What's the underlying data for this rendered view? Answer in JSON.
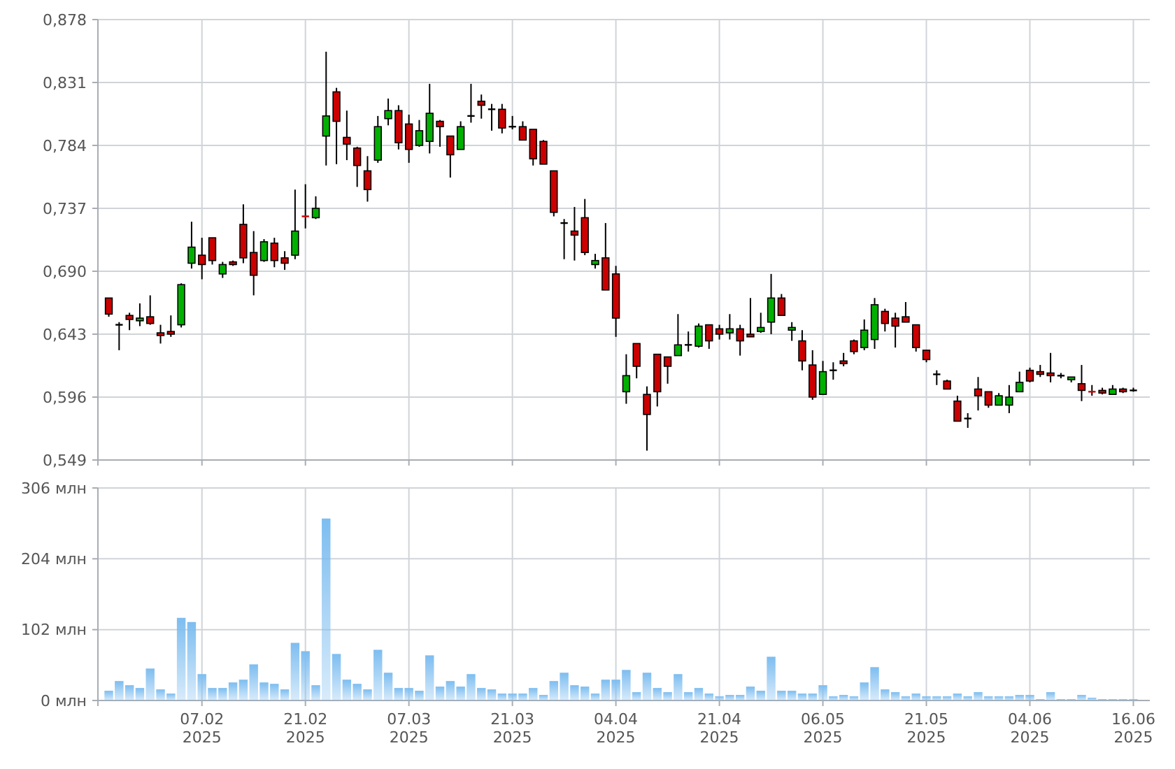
{
  "chart_data": [
    {
      "type": "candlestick",
      "tick_labels": "y",
      "grid": true,
      "categories": [
        null,
        null,
        null,
        null,
        null,
        null,
        null,
        null,
        null,
        null,
        null,
        null,
        null,
        null,
        null,
        null,
        null,
        null,
        null,
        null,
        null,
        null,
        null,
        null,
        null,
        null,
        null,
        null,
        null,
        null,
        null,
        null,
        null,
        null,
        null,
        null,
        null,
        null,
        null,
        null,
        null,
        null,
        null,
        null,
        null,
        null,
        null,
        null,
        null,
        null,
        null,
        null,
        null,
        null,
        null,
        null,
        null,
        null,
        null,
        null,
        null,
        null,
        null,
        null,
        null,
        null,
        null,
        null,
        null,
        null,
        null,
        null,
        null,
        null,
        null,
        null,
        null,
        null,
        null,
        null,
        null,
        null,
        null,
        null,
        null,
        null,
        null,
        null,
        null,
        null,
        null,
        null,
        null,
        null,
        null,
        null,
        null,
        null,
        null,
        null
      ],
      "ylim": [
        0.549,
        0.878
      ],
      "yticks": [
        {
          "value": 0.549,
          "label": "0,549"
        },
        {
          "value": 0.596,
          "label": "0,596"
        },
        {
          "value": 0.643,
          "label": "0,643"
        },
        {
          "value": 0.69,
          "label": "0,690"
        },
        {
          "value": 0.737,
          "label": "0,737"
        },
        {
          "value": 0.784,
          "label": "0,784"
        },
        {
          "value": 0.831,
          "label": "0,831"
        },
        {
          "value": 0.878,
          "label": "0,878"
        }
      ],
      "ohlc": [
        [
          0.67,
          0.67,
          0.656,
          0.658
        ],
        [
          0.65,
          0.652,
          0.631,
          0.65
        ],
        [
          0.657,
          0.659,
          0.646,
          0.654
        ],
        [
          0.653,
          0.666,
          0.649,
          0.655
        ],
        [
          0.656,
          0.672,
          0.65,
          0.651
        ],
        [
          0.644,
          0.65,
          0.636,
          0.642
        ],
        [
          0.645,
          0.657,
          0.641,
          0.643
        ],
        [
          0.65,
          0.681,
          0.648,
          0.68
        ],
        [
          0.696,
          0.727,
          0.692,
          0.708
        ],
        [
          0.702,
          0.715,
          0.684,
          0.695
        ],
        [
          0.715,
          0.715,
          0.695,
          0.698
        ],
        [
          0.688,
          0.697,
          0.685,
          0.695
        ],
        [
          0.697,
          0.698,
          0.694,
          0.695
        ],
        [
          0.725,
          0.74,
          0.696,
          0.7
        ],
        [
          0.704,
          0.72,
          0.672,
          0.687
        ],
        [
          0.698,
          0.714,
          0.697,
          0.712
        ],
        [
          0.711,
          0.715,
          0.693,
          0.698
        ],
        [
          0.7,
          0.705,
          0.691,
          0.696
        ],
        [
          0.702,
          0.751,
          0.699,
          0.72
        ],
        [
          0.731,
          0.755,
          0.722,
          0.73
        ],
        [
          0.73,
          0.746,
          0.729,
          0.737
        ],
        [
          0.791,
          0.854,
          0.769,
          0.806
        ],
        [
          0.824,
          0.827,
          0.77,
          0.802
        ],
        [
          0.79,
          0.81,
          0.773,
          0.785
        ],
        [
          0.782,
          0.783,
          0.753,
          0.769
        ],
        [
          0.765,
          0.776,
          0.742,
          0.751
        ],
        [
          0.773,
          0.806,
          0.771,
          0.798
        ],
        [
          0.804,
          0.819,
          0.799,
          0.81
        ],
        [
          0.81,
          0.814,
          0.781,
          0.786
        ],
        [
          0.8,
          0.807,
          0.771,
          0.781
        ],
        [
          0.784,
          0.803,
          0.783,
          0.795
        ],
        [
          0.787,
          0.83,
          0.778,
          0.808
        ],
        [
          0.802,
          0.803,
          0.783,
          0.798
        ],
        [
          0.791,
          0.791,
          0.76,
          0.777
        ],
        [
          0.781,
          0.802,
          0.781,
          0.798
        ],
        [
          0.806,
          0.83,
          0.801,
          0.806
        ],
        [
          0.817,
          0.822,
          0.804,
          0.814
        ],
        [
          0.811,
          0.815,
          0.795,
          0.811
        ],
        [
          0.811,
          0.815,
          0.793,
          0.797
        ],
        [
          0.798,
          0.806,
          0.796,
          0.798
        ],
        [
          0.798,
          0.802,
          0.788,
          0.788
        ],
        [
          0.796,
          0.796,
          0.769,
          0.774
        ],
        [
          0.787,
          0.788,
          0.77,
          0.77
        ],
        [
          0.765,
          0.765,
          0.731,
          0.734
        ],
        [
          0.726,
          0.729,
          0.699,
          0.726
        ],
        [
          0.72,
          0.738,
          0.698,
          0.717
        ],
        [
          0.73,
          0.744,
          0.702,
          0.704
        ],
        [
          0.695,
          0.703,
          0.692,
          0.698
        ],
        [
          0.7,
          0.726,
          0.676,
          0.676
        ],
        [
          0.688,
          0.694,
          0.641,
          0.655
        ],
        [
          0.6,
          0.628,
          0.591,
          0.612
        ],
        [
          0.636,
          0.636,
          0.61,
          0.619
        ],
        [
          0.598,
          0.604,
          0.556,
          0.583
        ],
        [
          0.628,
          0.628,
          0.589,
          0.6
        ],
        [
          0.626,
          0.626,
          0.606,
          0.619
        ],
        [
          0.627,
          0.658,
          0.627,
          0.635
        ],
        [
          0.635,
          0.645,
          0.63,
          0.635
        ],
        [
          0.634,
          0.651,
          0.633,
          0.649
        ],
        [
          0.65,
          0.65,
          0.632,
          0.638
        ],
        [
          0.647,
          0.65,
          0.639,
          0.643
        ],
        [
          0.644,
          0.658,
          0.639,
          0.647
        ],
        [
          0.647,
          0.65,
          0.627,
          0.638
        ],
        [
          0.643,
          0.67,
          0.641,
          0.641
        ],
        [
          0.645,
          0.659,
          0.644,
          0.648
        ],
        [
          0.652,
          0.688,
          0.643,
          0.67
        ],
        [
          0.67,
          0.673,
          0.657,
          0.657
        ],
        [
          0.646,
          0.652,
          0.638,
          0.648
        ],
        [
          0.638,
          0.646,
          0.616,
          0.623
        ],
        [
          0.62,
          0.631,
          0.594,
          0.596
        ],
        [
          0.598,
          0.623,
          0.598,
          0.615
        ],
        [
          0.616,
          0.622,
          0.609,
          0.616
        ],
        [
          0.623,
          0.629,
          0.619,
          0.621
        ],
        [
          0.638,
          0.639,
          0.628,
          0.63
        ],
        [
          0.633,
          0.654,
          0.631,
          0.646
        ],
        [
          0.639,
          0.67,
          0.632,
          0.665
        ],
        [
          0.66,
          0.662,
          0.645,
          0.651
        ],
        [
          0.655,
          0.659,
          0.633,
          0.649
        ],
        [
          0.656,
          0.667,
          0.652,
          0.652
        ],
        [
          0.65,
          0.65,
          0.63,
          0.633
        ],
        [
          0.631,
          0.631,
          0.622,
          0.624
        ],
        [
          0.613,
          0.616,
          0.605,
          0.613
        ],
        [
          0.608,
          0.609,
          0.602,
          0.602
        ],
        [
          0.593,
          0.597,
          0.578,
          0.578
        ],
        [
          0.58,
          0.584,
          0.573,
          0.58
        ],
        [
          0.602,
          0.611,
          0.586,
          0.597
        ],
        [
          0.6,
          0.6,
          0.588,
          0.59
        ],
        [
          0.59,
          0.599,
          0.59,
          0.597
        ],
        [
          0.59,
          0.605,
          0.584,
          0.596
        ],
        [
          0.6,
          0.615,
          0.6,
          0.607
        ],
        [
          0.616,
          0.618,
          0.607,
          0.608
        ],
        [
          0.615,
          0.62,
          0.611,
          0.613
        ],
        [
          0.614,
          0.629,
          0.607,
          0.612
        ],
        [
          0.612,
          0.614,
          0.61,
          0.612
        ],
        [
          0.609,
          0.611,
          0.607,
          0.611
        ],
        [
          0.606,
          0.62,
          0.593,
          0.601
        ],
        [
          0.6,
          0.605,
          0.597,
          0.599
        ],
        [
          0.601,
          0.603,
          0.598,
          0.599
        ],
        [
          0.598,
          0.605,
          0.598,
          0.602
        ],
        [
          0.602,
          0.603,
          0.599,
          0.6
        ],
        [
          0.601,
          0.603,
          0.6,
          0.601
        ]
      ],
      "colors": [
        "#cc0000",
        "#000000",
        "#cc0000",
        "#00b000",
        "#cc0000",
        "#cc0000",
        "#cc0000",
        "#00b000",
        "#00b000",
        "#cc0000",
        "#cc0000",
        "#00b000",
        "#cc0000",
        "#cc0000",
        "#cc0000",
        "#00b000",
        "#cc0000",
        "#cc0000",
        "#00b000",
        "#cc0000",
        "#00b000",
        "#00b000",
        "#cc0000",
        "#cc0000",
        "#cc0000",
        "#cc0000",
        "#00b000",
        "#00b000",
        "#cc0000",
        "#cc0000",
        "#00b000",
        "#00b000",
        "#cc0000",
        "#cc0000",
        "#00b000",
        "#000000",
        "#cc0000",
        "#000000",
        "#cc0000",
        "#000000",
        "#cc0000",
        "#cc0000",
        "#cc0000",
        "#cc0000",
        "#000000",
        "#cc0000",
        "#cc0000",
        "#00b000",
        "#cc0000",
        "#cc0000",
        "#00b000",
        "#cc0000",
        "#cc0000",
        "#cc0000",
        "#cc0000",
        "#00b000",
        "#000000",
        "#00b000",
        "#cc0000",
        "#cc0000",
        "#00b000",
        "#cc0000",
        "#cc0000",
        "#00b000",
        "#00b000",
        "#cc0000",
        "#00b000",
        "#cc0000",
        "#cc0000",
        "#00b000",
        "#000000",
        "#cc0000",
        "#cc0000",
        "#00b000",
        "#00b000",
        "#cc0000",
        "#cc0000",
        "#cc0000",
        "#cc0000",
        "#cc0000",
        "#000000",
        "#cc0000",
        "#cc0000",
        "#000000",
        "#cc0000",
        "#cc0000",
        "#00b000",
        "#00b000",
        "#00b000",
        "#cc0000",
        "#cc0000",
        "#cc0000",
        "#000000",
        "#00b000",
        "#cc0000",
        "#cc0000",
        "#cc0000",
        "#00b000",
        "#cc0000",
        "#000000"
      ]
    },
    {
      "type": "bar",
      "grid": true,
      "color": "#7dbdf0",
      "categories": [
        null,
        null,
        null,
        null,
        null,
        null,
        null,
        null,
        null,
        "07.02 2025",
        null,
        null,
        null,
        null,
        null,
        null,
        null,
        null,
        null,
        "21.02 2025",
        null,
        null,
        null,
        null,
        null,
        null,
        null,
        null,
        null,
        "07.03 2025",
        null,
        null,
        null,
        null,
        null,
        null,
        null,
        null,
        null,
        "21.03 2025",
        null,
        null,
        null,
        null,
        null,
        null,
        null,
        null,
        null,
        "04.04 2025",
        null,
        null,
        null,
        null,
        null,
        null,
        null,
        null,
        null,
        "21.04 2025",
        null,
        null,
        null,
        null,
        null,
        null,
        null,
        null,
        null,
        "06.05 2025",
        null,
        null,
        null,
        null,
        null,
        null,
        null,
        null,
        null,
        "21.05 2025",
        null,
        null,
        null,
        null,
        null,
        null,
        null,
        null,
        null,
        "04.06 2025",
        null,
        null,
        null,
        null,
        null,
        null,
        null,
        null,
        null,
        "16.06 2025"
      ],
      "ylim": [
        0,
        306
      ],
      "yticks": [
        {
          "value": 0,
          "label": "0 млн"
        },
        {
          "value": 102,
          "label": "102 млн"
        },
        {
          "value": 204,
          "label": "204 млн"
        },
        {
          "value": 306,
          "label": "306 млн"
        }
      ],
      "values": [
        14,
        28,
        22,
        18,
        46,
        16,
        10,
        119,
        113,
        38,
        18,
        18,
        26,
        30,
        52,
        26,
        24,
        16,
        83,
        71,
        22,
        262,
        67,
        30,
        24,
        16,
        73,
        40,
        18,
        18,
        14,
        65,
        20,
        28,
        20,
        38,
        18,
        16,
        10,
        10,
        10,
        18,
        8,
        28,
        40,
        22,
        20,
        10,
        30,
        30,
        44,
        12,
        40,
        18,
        12,
        38,
        12,
        18,
        10,
        6,
        8,
        8,
        20,
        14,
        63,
        14,
        14,
        10,
        10,
        22,
        6,
        8,
        6,
        26,
        48,
        16,
        12,
        6,
        10,
        6,
        6,
        6,
        10,
        6,
        12,
        6,
        6,
        6,
        8,
        8,
        2,
        12,
        2,
        2,
        8,
        4,
        2,
        2,
        2,
        2
      ]
    }
  ]
}
